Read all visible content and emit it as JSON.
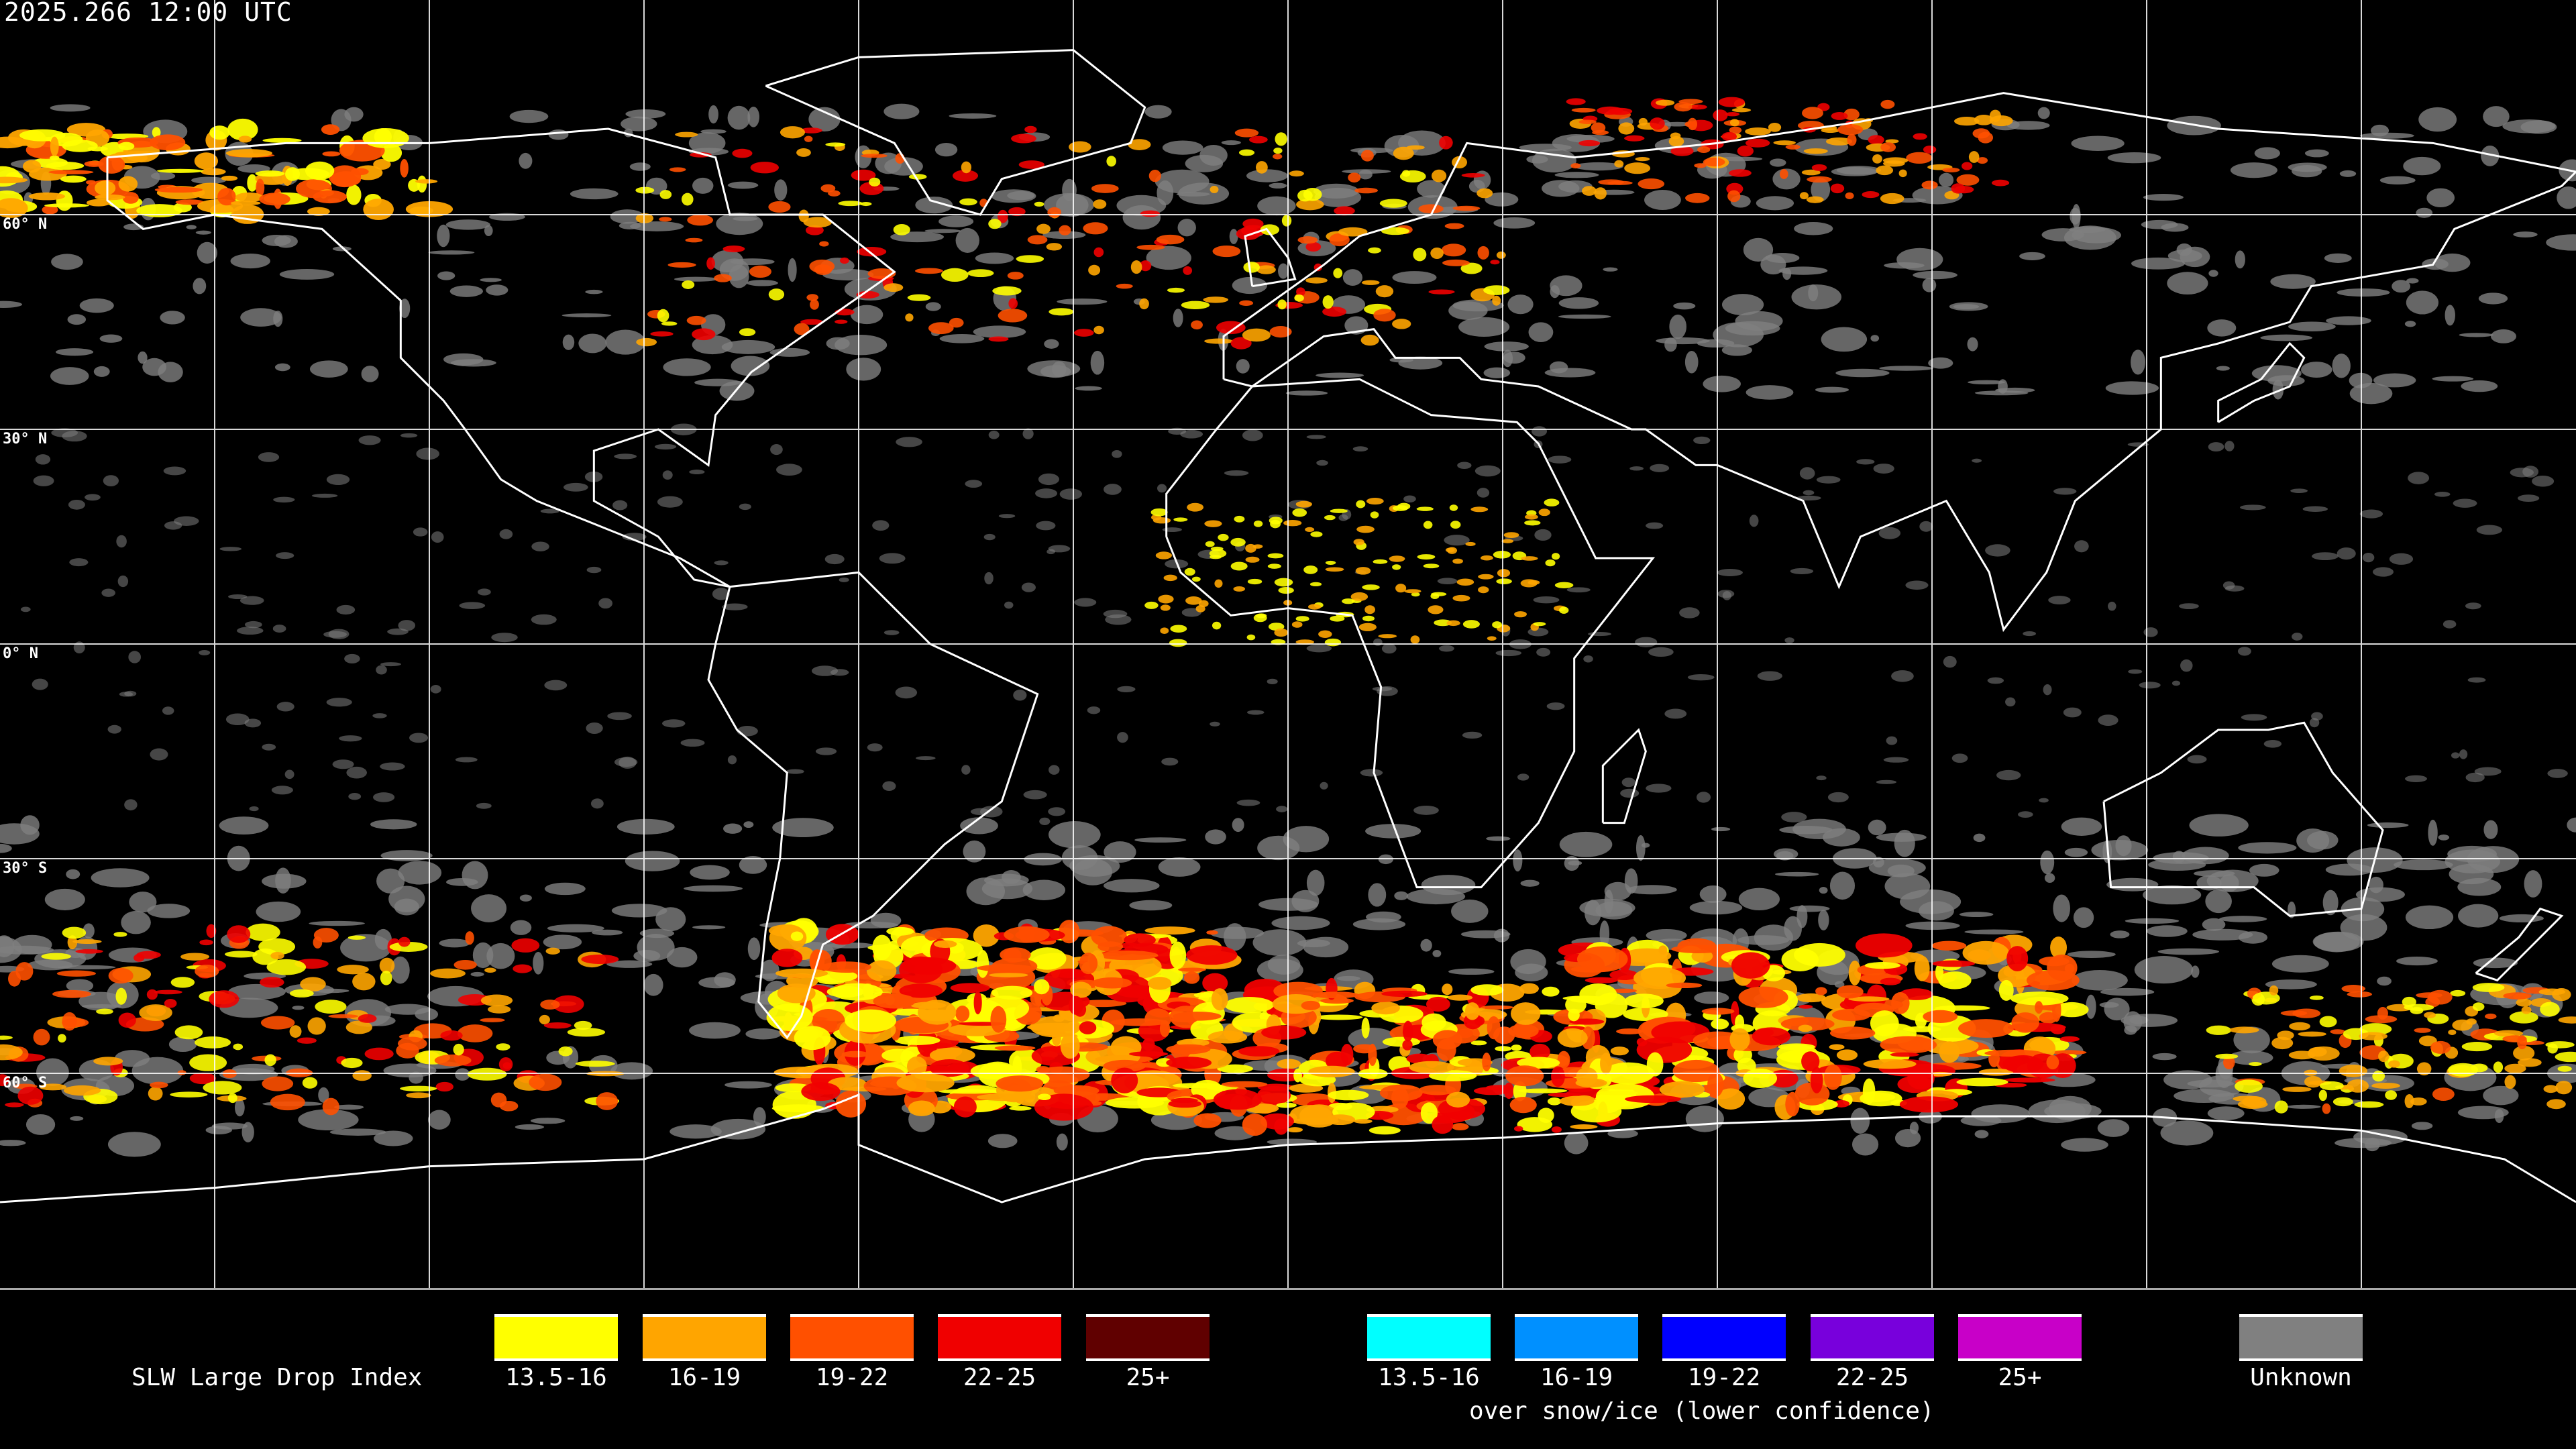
{
  "title": "2025.266 12:00 UTC",
  "lat_labels": [
    "60° N",
    "30° N",
    "0° N",
    "30° S",
    "60° S"
  ],
  "map": {
    "projection": "equirectangular",
    "lon_range": [
      -180,
      180
    ],
    "lat_range": [
      -90,
      90
    ],
    "graticule_step_deg": 30,
    "coastline_color": "#ffffff",
    "unknown_color": "#808080"
  },
  "legend": {
    "title": "SLW Large Drop Index",
    "normal": [
      {
        "label": "13.5-16",
        "color": "#ffff00"
      },
      {
        "label": "16-19",
        "color": "#ffa500"
      },
      {
        "label": "19-22",
        "color": "#ff5000"
      },
      {
        "label": "22-25",
        "color": "#f00000"
      },
      {
        "label": "25+",
        "color": "#600000"
      }
    ],
    "snow_ice": [
      {
        "label": "13.5-16",
        "color": "#00ffff"
      },
      {
        "label": "16-19",
        "color": "#0090ff"
      },
      {
        "label": "19-22",
        "color": "#0000ff"
      },
      {
        "label": "22-25",
        "color": "#7800dc"
      },
      {
        "label": "25+",
        "color": "#c800c8"
      }
    ],
    "snow_ice_caption": "over snow/ice (lower confidence)",
    "unknown": {
      "label": "Unknown",
      "color": "#808080"
    }
  }
}
